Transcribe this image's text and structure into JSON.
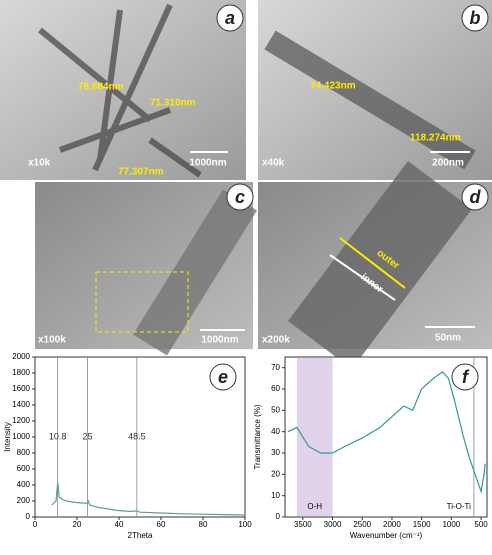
{
  "panels": [
    {
      "letter": "a",
      "labels": [
        "78.884nm",
        "71.310nm",
        "77.307nm"
      ],
      "magnification": "x10k",
      "scale": "1000nm"
    },
    {
      "letter": "b",
      "labels": [
        "74.423nm",
        "118.274nm"
      ],
      "magnification": "x40k",
      "scale": "200nm"
    },
    {
      "letter": "c",
      "labels": [],
      "magnification": "x100k",
      "scale": "1000nm"
    },
    {
      "letter": "d",
      "labels": [
        "outer",
        "inner"
      ],
      "magnification": "x200k",
      "scale": "50nm"
    }
  ],
  "chart_data": [
    {
      "type": "line",
      "panel": "e",
      "xlabel": "2Theta",
      "ylabel": "Intensity",
      "color": "#5a9f96",
      "x": [
        8,
        10,
        10.8,
        11.5,
        13,
        15,
        20,
        25,
        25.3,
        26,
        30,
        35,
        40,
        45,
        48.5,
        50,
        60,
        70,
        80,
        90,
        100
      ],
      "values": [
        150,
        200,
        430,
        250,
        220,
        200,
        180,
        170,
        210,
        150,
        120,
        100,
        80,
        70,
        75,
        60,
        50,
        40,
        35,
        30,
        25
      ],
      "xlim": [
        0,
        100
      ],
      "xticks": [
        0,
        20,
        40,
        60,
        80,
        100
      ],
      "ylim": [
        0,
        2000
      ],
      "yticks": [
        0,
        200,
        400,
        600,
        800,
        1000,
        1200,
        1400,
        1600,
        1800,
        2000
      ],
      "vlines": [
        10.8,
        25,
        48.5
      ]
    },
    {
      "type": "line",
      "panel": "f",
      "xlabel": "Wavenumber (cm⁻¹)",
      "ylabel": "Transmittance (%)",
      "color": "#2e9a9a",
      "x": [
        3750,
        3600,
        3400,
        3200,
        3000,
        2800,
        2500,
        2200,
        2000,
        1800,
        1650,
        1500,
        1300,
        1150,
        1050,
        950,
        800,
        700,
        600,
        500,
        450,
        430
      ],
      "values": [
        40,
        42,
        33,
        30,
        30,
        33,
        37,
        42,
        47,
        52,
        50,
        60,
        65,
        68,
        65,
        55,
        38,
        28,
        20,
        12,
        20,
        25
      ],
      "xlim": [
        3800,
        400
      ],
      "xticks": [
        3500,
        3000,
        2500,
        2000,
        1500,
        1000,
        500
      ],
      "ylim": [
        0,
        75
      ],
      "yticks": [
        0,
        10,
        20,
        30,
        40,
        50,
        60,
        70
      ],
      "bands": [
        {
          "from": 3600,
          "to": 3000,
          "label": "O-H"
        }
      ],
      "vlines": [
        {
          "value": 620,
          "label": "Ti-O-Ti"
        }
      ]
    }
  ]
}
